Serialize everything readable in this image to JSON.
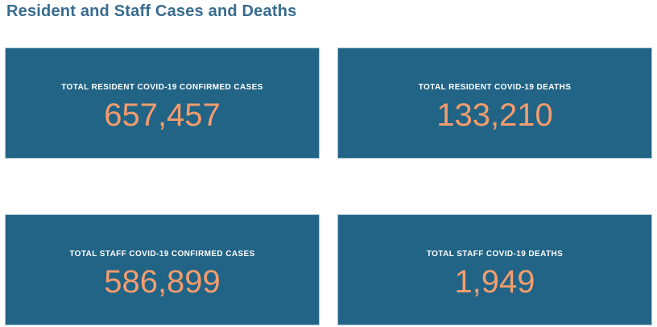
{
  "header": {
    "title": "Resident and Staff Cases and Deaths"
  },
  "cards": [
    {
      "label": "TOTAL RESIDENT COVID-19 CONFIRMED CASES",
      "value": "657,457"
    },
    {
      "label": "TOTAL RESIDENT COVID-19 DEATHS",
      "value": "133,210"
    },
    {
      "label": "TOTAL STAFF COVID-19 CONFIRMED CASES",
      "value": "586,899"
    },
    {
      "label": "TOTAL STAFF COVID-19 DEATHS",
      "value": "1,949"
    }
  ],
  "colors": {
    "card_background": "#216486",
    "card_border": "#a7c6db",
    "label_text": "#ffffff",
    "value_text": "#f49c6e",
    "title_text": "#386c8f",
    "page_background": "#ffffff"
  },
  "chart_data": {
    "type": "table",
    "title": "Resident and Staff Cases and Deaths",
    "categories": [
      "Total Resident COVID-19 Confirmed Cases",
      "Total Resident COVID-19 Deaths",
      "Total Staff COVID-19 Confirmed Cases",
      "Total Staff COVID-19 Deaths"
    ],
    "values": [
      657457,
      133210,
      586899,
      1949
    ],
    "layout": "2x2 KPI tiles, labels above values, all centered"
  }
}
